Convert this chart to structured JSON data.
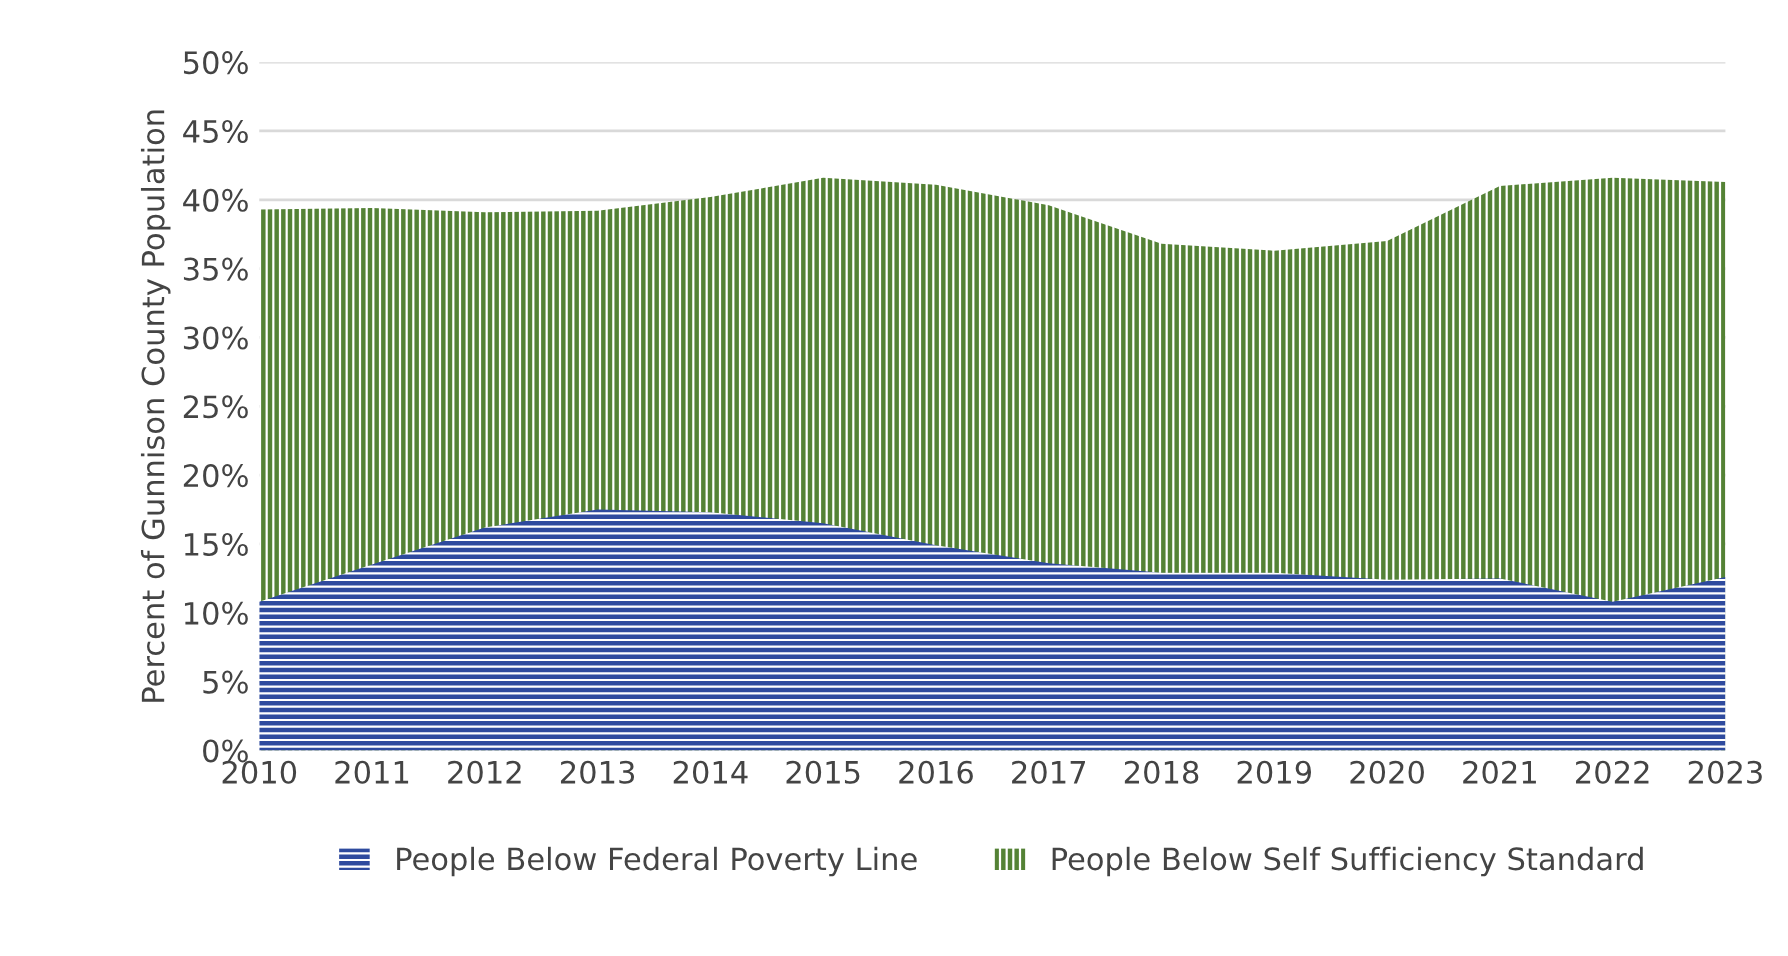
{
  "chart_data": {
    "type": "area",
    "ylabel": "Percent of Gunnison County Population",
    "x": [
      2010,
      2011,
      2012,
      2013,
      2014,
      2015,
      2016,
      2017,
      2018,
      2019,
      2020,
      2021,
      2022,
      2023
    ],
    "series": [
      {
        "name": "People Below Federal Poverty Line",
        "color": "#2e4a9e",
        "values": [
          10.8,
          13.5,
          16.2,
          17.5,
          17.3,
          16.5,
          14.9,
          13.6,
          12.9,
          12.9,
          12.4,
          12.5,
          10.8,
          12.6
        ]
      },
      {
        "name": "People Below Self Sufficiency Standard",
        "color": "#548235",
        "values": [
          39.3,
          39.4,
          39.1,
          39.2,
          40.2,
          41.6,
          41.1,
          39.6,
          36.8,
          36.3,
          37.0,
          41.0,
          41.6,
          41.3
        ]
      }
    ],
    "xlim": [
      2010,
      2023
    ],
    "xticks": [
      2010,
      2011,
      2012,
      2013,
      2014,
      2015,
      2016,
      2017,
      2018,
      2019,
      2020,
      2021,
      2022,
      2023
    ],
    "ylim": [
      0,
      50
    ],
    "yticks": [
      {
        "value": 0,
        "label": "0%"
      },
      {
        "value": 5,
        "label": "5%"
      },
      {
        "value": 10,
        "label": "10%"
      },
      {
        "value": 15,
        "label": "15%"
      },
      {
        "value": 20,
        "label": "20%"
      },
      {
        "value": 25,
        "label": "25%"
      },
      {
        "value": 30,
        "label": "30%"
      },
      {
        "value": 35,
        "label": "35%"
      },
      {
        "value": 40,
        "label": "40%"
      },
      {
        "value": 45,
        "label": "45%"
      },
      {
        "value": 50,
        "label": "50%"
      }
    ],
    "grid": "y",
    "legend": "bottom"
  }
}
